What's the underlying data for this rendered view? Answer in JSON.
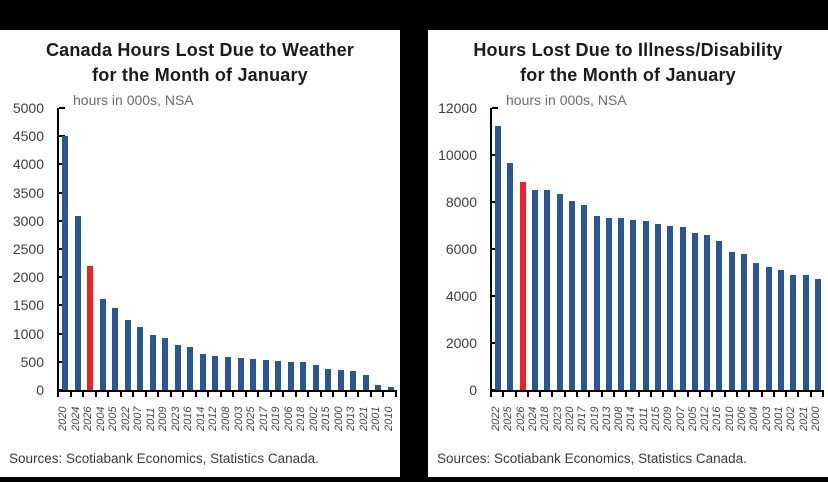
{
  "colors": {
    "bar_blue": "#2a5694",
    "highlight_red": "#ee2224",
    "frame_black": "#000000",
    "panel_white": "#ffffff",
    "title_text": "#1b1b1b",
    "subtitle_gray": "#6b6b6b",
    "axis_label_gray": "#3d3d3d"
  },
  "chart_data": [
    {
      "type": "bar",
      "title_line1": "Canada Hours Lost Due to Weather",
      "title_line2": "for the Month of January",
      "subtitle": "hours in 000s, NSA",
      "source": "Sources: Scotiabank Economics, Statistics Canada.",
      "ylabel": "hours in 000s, NSA",
      "ylim": [
        0,
        5000
      ],
      "yticks": [
        5000,
        4500,
        4000,
        3500,
        3000,
        2500,
        2000,
        1500,
        1000,
        500,
        0
      ],
      "grid": false,
      "legend": "none",
      "sort_order": "descending",
      "categories": [
        "2020",
        "2024",
        "2026",
        "2004",
        "2005",
        "2022",
        "2007",
        "2011",
        "2009",
        "2023",
        "2016",
        "2014",
        "2012",
        "2008",
        "2003",
        "2025",
        "2017",
        "2019",
        "2006",
        "2018",
        "2002",
        "2015",
        "2000",
        "2013",
        "2021",
        "2001",
        "2010"
      ],
      "values": [
        4500,
        3080,
        2200,
        1620,
        1450,
        1240,
        1110,
        970,
        930,
        790,
        770,
        630,
        610,
        580,
        565,
        555,
        540,
        520,
        505,
        490,
        440,
        380,
        355,
        340,
        260,
        95,
        55
      ],
      "highlight_category": "2026",
      "bar_color": "#2a5694",
      "highlight_color": "#ee2224"
    },
    {
      "type": "bar",
      "title_line1": "Hours Lost Due to Illness/Disability",
      "title_line2": "for the Month of January",
      "subtitle": "hours in 000s, NSA",
      "source": "Sources: Scotiabank Economics, Statistics Canada.",
      "ylabel": "hours in 000s, NSA",
      "ylim": [
        0,
        12000
      ],
      "yticks": [
        12000,
        10000,
        8000,
        6000,
        4000,
        2000,
        0
      ],
      "grid": false,
      "legend": "none",
      "sort_order": "descending",
      "categories": [
        "2022",
        "2025",
        "2026",
        "2024",
        "2018",
        "2023",
        "2020",
        "2017",
        "2019",
        "2013",
        "2008",
        "2014",
        "2011",
        "2015",
        "2009",
        "2007",
        "2005",
        "2012",
        "2016",
        "2010",
        "2006",
        "2004",
        "2003",
        "2001",
        "2002",
        "2021",
        "2000"
      ],
      "values": [
        11250,
        9680,
        8870,
        8520,
        8490,
        8350,
        8060,
        7890,
        7420,
        7330,
        7300,
        7230,
        7210,
        7080,
        6990,
        6930,
        6700,
        6610,
        6350,
        5870,
        5800,
        5420,
        5230,
        5110,
        4900,
        4890,
        4720
      ],
      "highlight_category": "2026",
      "bar_color": "#2a5694",
      "highlight_color": "#ee2224"
    }
  ]
}
